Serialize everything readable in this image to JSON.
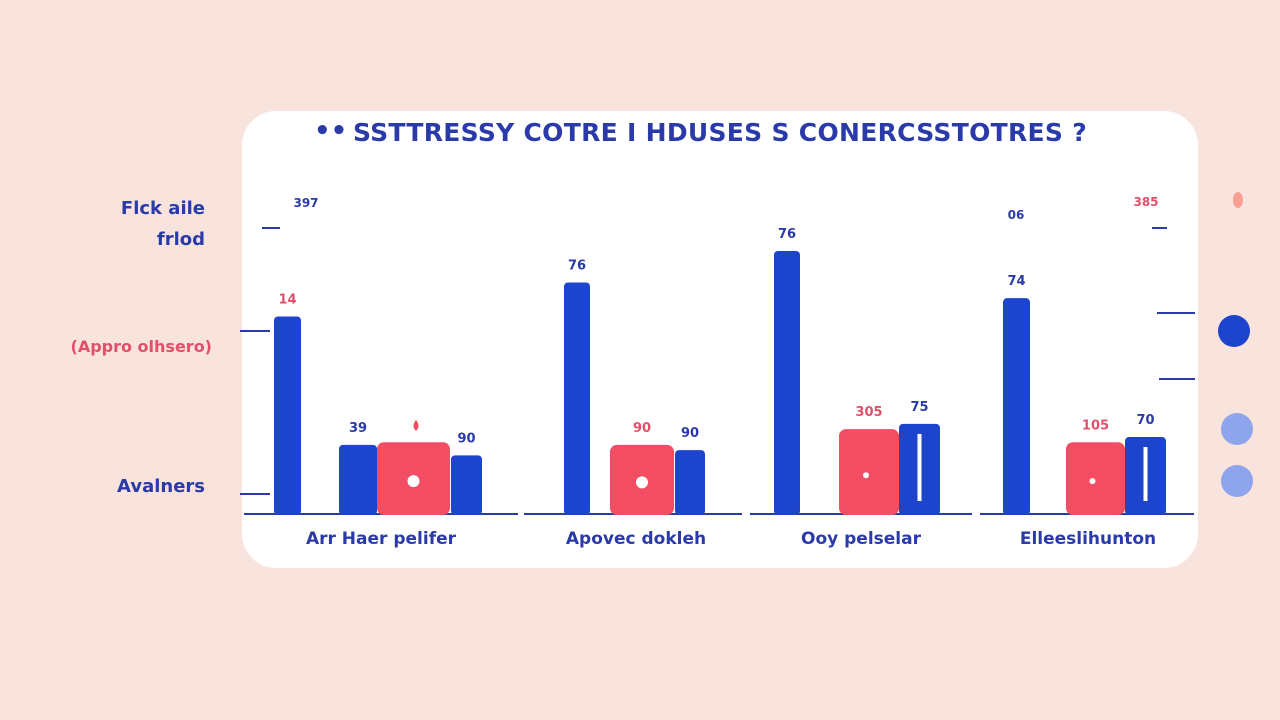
{
  "title": "SSTTRESSY COTRE I HDUSES S CONERCSSTOTRES ?",
  "title_prefix": "••",
  "side_labels": {
    "top_line1": "Flck aile",
    "top_line2": "frlod",
    "middle": "(Appro olhsero)",
    "bottom": "Avalners"
  },
  "colors": {
    "background": "#f8e4dc",
    "blue": "#1c44cc",
    "pink": "#f24d62",
    "text_blue": "#2a3aa8",
    "light_dot": "#8ea4ec"
  },
  "chart_data": {
    "type": "bar",
    "title": "SSTTRESSY COTRE I HDUSES S CONERCSSTOTRES ?",
    "categories": [
      "Arr Haer pelifer",
      "Apovec dokleh",
      "Ooy pelselar",
      "Elleeslihunton"
    ],
    "series": [
      {
        "color": "#1c44cc",
        "values": [
          75,
          88,
          100,
          82
        ],
        "labels": [
          "14",
          "76",
          "76",
          "74"
        ]
      },
      {
        "color": "#1c44cc",
        "values": [
          26,
          0,
          0,
          0
        ],
        "labels": [
          "39",
          "",
          "",
          ""
        ]
      },
      {
        "color": "#f24d62",
        "values": [
          27,
          26,
          32,
          27
        ],
        "labels": [
          "",
          "90",
          "305",
          "105"
        ]
      },
      {
        "color": "#1c44cc",
        "values": [
          22,
          24,
          34,
          29
        ],
        "labels": [
          "90",
          "90",
          "75",
          "70"
        ]
      }
    ],
    "extra_labels": [
      "397",
      "06",
      "385"
    ]
  }
}
